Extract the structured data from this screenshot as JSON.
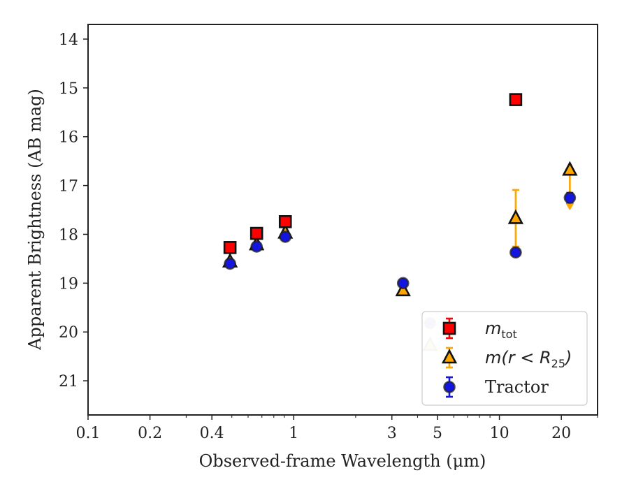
{
  "chart_data": {
    "type": "scatter",
    "xscale": "log",
    "yinverted": true,
    "xlim": [
      0.1,
      30
    ],
    "ylim": [
      13.7,
      21.7
    ],
    "xlabel": "Observed-frame Wavelength (μm)",
    "ylabel": "Apparent Brightness (AB mag)",
    "xticks": [
      {
        "value": 0.1,
        "label": "0.1"
      },
      {
        "value": 0.2,
        "label": "0.2"
      },
      {
        "value": 0.4,
        "label": "0.4"
      },
      {
        "value": 1,
        "label": "1"
      },
      {
        "value": 3,
        "label": "3"
      },
      {
        "value": 5,
        "label": "5"
      },
      {
        "value": 10,
        "label": "10"
      },
      {
        "value": 20,
        "label": "20"
      }
    ],
    "xminor": [
      0.3,
      0.5,
      0.6,
      0.7,
      0.8,
      0.9,
      2,
      4,
      6,
      7,
      8,
      9,
      30
    ],
    "yticks": [
      {
        "value": 14,
        "label": "14"
      },
      {
        "value": 15,
        "label": "15"
      },
      {
        "value": 16,
        "label": "16"
      },
      {
        "value": 17,
        "label": "17"
      },
      {
        "value": 18,
        "label": "18"
      },
      {
        "value": 19,
        "label": "19"
      },
      {
        "value": 20,
        "label": "20"
      },
      {
        "value": 21,
        "label": "21"
      }
    ],
    "legend_position": "lower-right",
    "series": [
      {
        "key": "mtot",
        "legend_base": "m",
        "legend_sub": "tot",
        "marker": "square",
        "color": "#ff0000",
        "errcolor": "#ff0000",
        "points": [
          {
            "x": 0.49,
            "y": 18.27
          },
          {
            "x": 0.66,
            "y": 17.98
          },
          {
            "x": 0.91,
            "y": 17.74
          },
          {
            "x": 12.0,
            "y": 15.24
          }
        ]
      },
      {
        "key": "mr25",
        "legend_base": "m(r < R",
        "legend_sub": "25",
        "legend_suffix": ")",
        "marker": "triangle",
        "color": "#ffa500",
        "errcolor": "#ffa500",
        "points": [
          {
            "x": 0.49,
            "y": 18.56
          },
          {
            "x": 0.66,
            "y": 18.21
          },
          {
            "x": 0.91,
            "y": 17.97
          },
          {
            "x": 3.4,
            "y": 19.15
          },
          {
            "x": 4.6,
            "y": 20.27,
            "faded": true
          },
          {
            "x": 12.0,
            "y": 17.67,
            "yerr": [
              0.58,
              0.58
            ]
          },
          {
            "x": 22.0,
            "y": 16.68,
            "upper_limit": true,
            "arrow_to": 17.48
          }
        ]
      },
      {
        "key": "tractor",
        "legend_base": "Tractor",
        "marker": "circle",
        "color": "#1515e0",
        "errcolor": "#1515e0",
        "points": [
          {
            "x": 0.49,
            "y": 18.6
          },
          {
            "x": 0.66,
            "y": 18.25
          },
          {
            "x": 0.91,
            "y": 18.05
          },
          {
            "x": 3.4,
            "y": 19.0
          },
          {
            "x": 4.6,
            "y": 19.82,
            "faded": true
          },
          {
            "x": 12.0,
            "y": 18.37
          },
          {
            "x": 22.0,
            "y": 17.25,
            "yerr": [
              0.1,
              0.1
            ]
          }
        ]
      }
    ]
  }
}
